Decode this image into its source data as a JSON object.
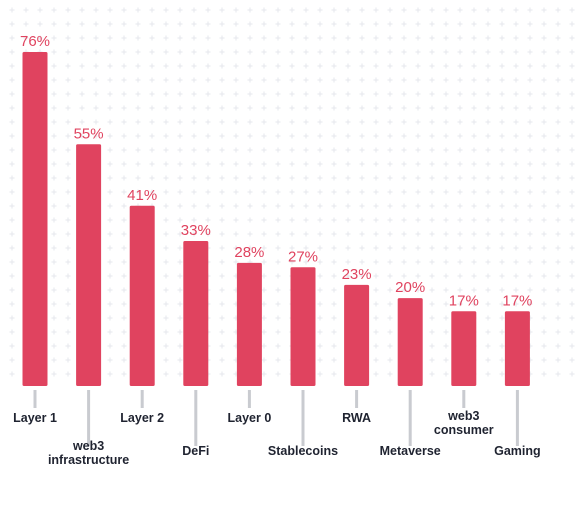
{
  "chart_data": {
    "type": "bar",
    "categories": [
      "Layer 1",
      "web3 infrastructure",
      "Layer 2",
      "DeFi",
      "Layer 0",
      "Stablecoins",
      "RWA",
      "Metaverse",
      "web3 consumer",
      "Gaming"
    ],
    "values": [
      76,
      55,
      41,
      33,
      28,
      27,
      23,
      20,
      17,
      17
    ],
    "value_labels": [
      "76%",
      "55%",
      "41%",
      "33%",
      "28%",
      "27%",
      "23%",
      "20%",
      "17%",
      "17%"
    ],
    "title": "",
    "xlabel": "",
    "ylabel": "",
    "ylim": [
      0,
      76
    ],
    "grid": true,
    "bar_color": "#e0435f",
    "value_label_color": "#e0435f",
    "tick_color": "#c9cbd0",
    "label_color": "#1f2330",
    "grid_color": "#e5e7ec"
  }
}
